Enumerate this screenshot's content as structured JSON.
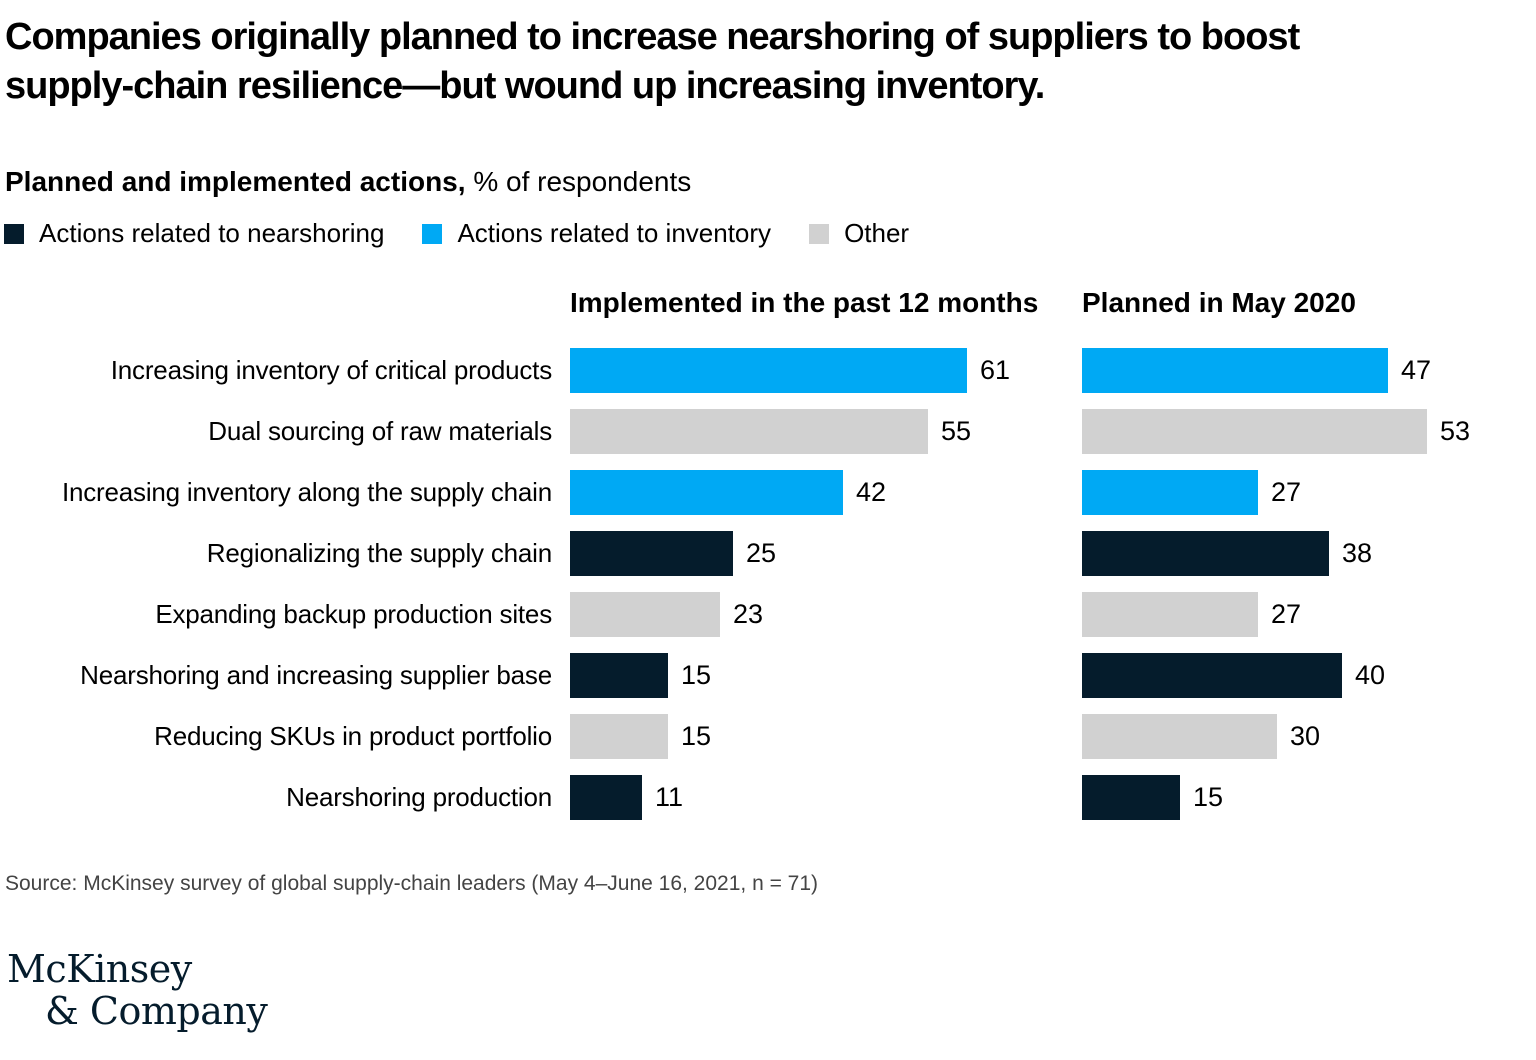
{
  "header": {
    "title_lines": [
      "Companies originally planned to increase nearshoring of suppliers to boost",
      "supply-chain resilience—but wound up increasing inventory."
    ]
  },
  "subtitle": {
    "bold": "Planned and implemented actions,",
    "rest": "% of respondents"
  },
  "legend": {
    "items": [
      {
        "key": "nearshoring",
        "label": "Actions related to nearshoring",
        "color": "#051C2C"
      },
      {
        "key": "inventory",
        "label": "Actions related to inventory",
        "color": "#00A9F4"
      },
      {
        "key": "other",
        "label": "Other",
        "color": "#D1D1D1"
      }
    ]
  },
  "chart_data": {
    "type": "bar",
    "orientation": "horizontal",
    "value_unit": "% of respondents",
    "column_headers": [
      "Implemented in the past 12 months",
      "Planned in May 2020"
    ],
    "categories": [
      "Increasing inventory of critical products",
      "Dual sourcing of raw materials",
      "Increasing inventory along the supply chain",
      "Regionalizing the supply chain",
      "Expanding backup production sites",
      "Nearshoring and increasing supplier base",
      "Reducing SKUs in product portfolio",
      "Nearshoring production"
    ],
    "category_groups": [
      "inventory",
      "other",
      "inventory",
      "nearshoring",
      "other",
      "nearshoring",
      "other",
      "nearshoring"
    ],
    "series": [
      {
        "name": "Implemented in the past 12 months",
        "values": [
          61,
          55,
          42,
          25,
          23,
          15,
          15,
          11
        ]
      },
      {
        "name": "Planned in May 2020",
        "values": [
          47,
          53,
          27,
          38,
          27,
          40,
          30,
          15
        ]
      }
    ],
    "xlim": [
      0,
      63
    ],
    "data_labels": true,
    "gridlines": false,
    "legend_position": "top"
  },
  "source": "Source: McKinsey survey of global supply-chain leaders (May 4–June 16, 2021, n = 71)",
  "logo": {
    "line1": "McKinsey",
    "line2": "& Company"
  }
}
